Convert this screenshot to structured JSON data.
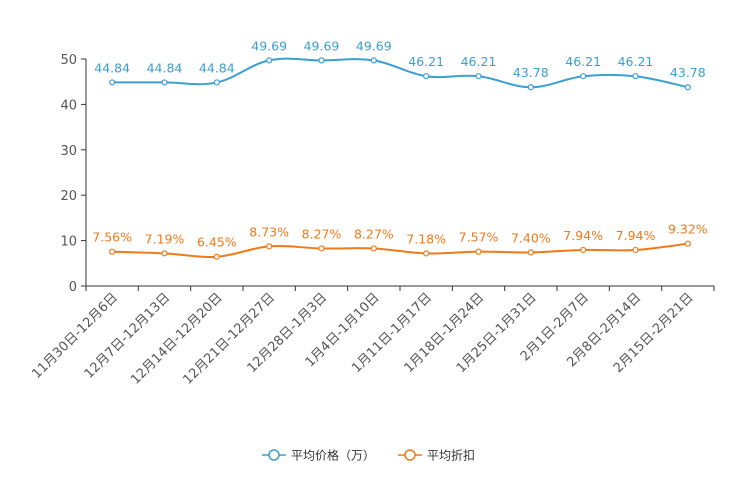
{
  "chart_data": {
    "type": "line",
    "title": "",
    "xlabel": "",
    "ylabel": "",
    "ylim": [
      0,
      50
    ],
    "yticks": [
      0,
      10,
      20,
      30,
      40,
      50
    ],
    "grid": false,
    "legend_position": "bottom-center",
    "categories": [
      "11月30日-12月6日",
      "12月7日-12月13日",
      "12月14日-12月20日",
      "12月21日-12月27日",
      "12月28日-1月3日",
      "1月4日-1月10日",
      "1月11日-1月17日",
      "1月18日-1月24日",
      "1月25日-1月31日",
      "2月1日-2月7日",
      "2月8日-2月14日",
      "2月15日-2月21日"
    ],
    "series": [
      {
        "name": "平均价格（万）",
        "color": "#3b9fd1",
        "values": [
          44.84,
          44.84,
          44.84,
          49.69,
          49.69,
          49.69,
          46.21,
          46.21,
          43.78,
          46.21,
          46.21,
          43.78
        ],
        "labels": [
          "44.84",
          "44.84",
          "44.84",
          "49.69",
          "49.69",
          "49.69",
          "46.21",
          "46.21",
          "43.78",
          "46.21",
          "46.21",
          "43.78"
        ]
      },
      {
        "name": "平均折扣",
        "color": "#f07a1a",
        "values": [
          7.56,
          7.19,
          6.45,
          8.73,
          8.27,
          8.27,
          7.18,
          7.57,
          7.4,
          7.94,
          7.94,
          9.32
        ],
        "labels": [
          "7.56%",
          "7.19%",
          "6.45%",
          "8.73%",
          "8.27%",
          "8.27%",
          "7.18%",
          "7.57%",
          "7.40%",
          "7.94%",
          "7.94%",
          "9.32%"
        ]
      }
    ]
  }
}
